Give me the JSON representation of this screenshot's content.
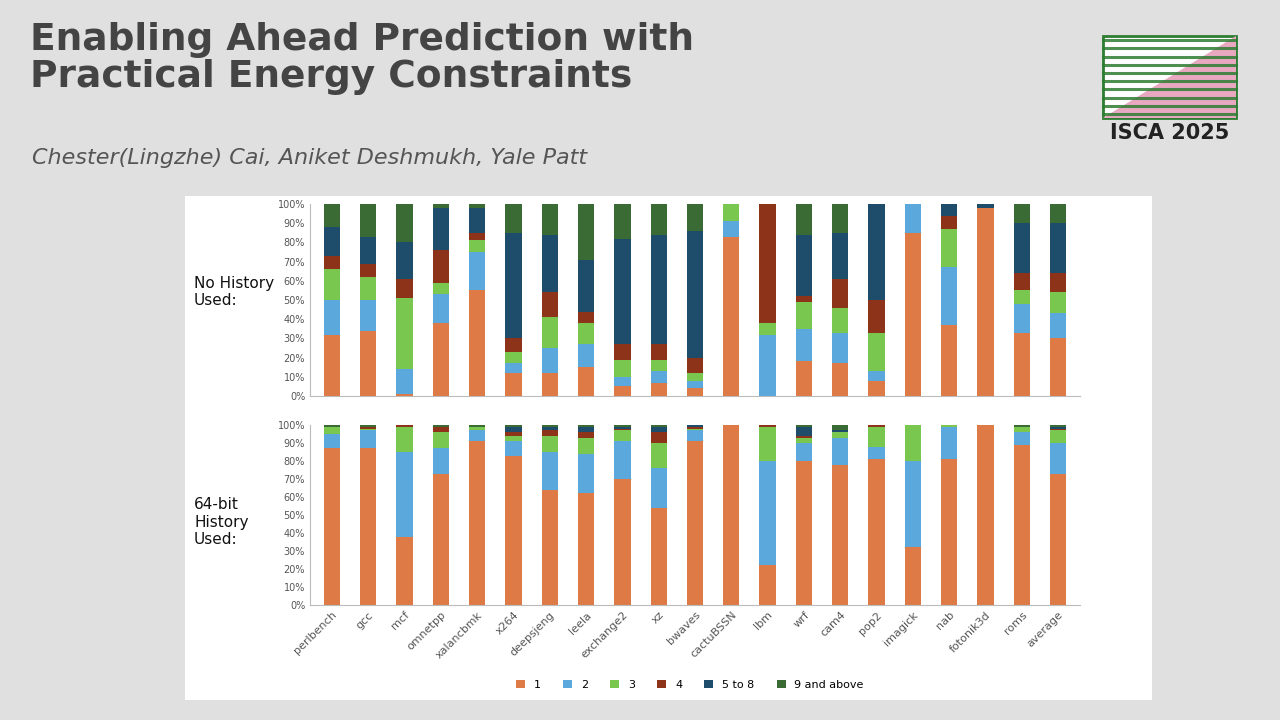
{
  "title": "Enabling Ahead Prediction with\nPractical Energy Constraints",
  "authors": "Chester(Lingzhe) Cai, Aniket Deshmukh, Yale Patt",
  "logo_text": "ISCA 2025",
  "chart_data": [
    {
      "type": "bar",
      "stacked": true,
      "subtitle": "No History\nUsed:",
      "tick_labels": "y",
      "grid": false,
      "categories": [
        "perlbench",
        "gcc",
        "mcf",
        "omnetpp",
        "xalancbmk",
        "x264",
        "deepsjeng",
        "leela",
        "exchange2",
        "xz",
        "bwaves",
        "cactuBSSN",
        "lbm",
        "wrf",
        "cam4",
        "pop2",
        "imagick",
        "nab",
        "fotonik3d",
        "roms",
        "average"
      ],
      "ylim": [
        0,
        100
      ],
      "yticks": [
        {
          "value": 0,
          "label": "0%"
        },
        {
          "value": 10,
          "label": "10%"
        },
        {
          "value": 20,
          "label": "20%"
        },
        {
          "value": 30,
          "label": "30%"
        },
        {
          "value": 40,
          "label": "40%"
        },
        {
          "value": 50,
          "label": "50%"
        },
        {
          "value": 60,
          "label": "60%"
        },
        {
          "value": 70,
          "label": "70%"
        },
        {
          "value": 80,
          "label": "80%"
        },
        {
          "value": 90,
          "label": "90%"
        },
        {
          "value": 100,
          "label": "100%"
        }
      ],
      "series": [
        {
          "name": "1",
          "color": "#dd7a45",
          "values": [
            32,
            34,
            1,
            38,
            55,
            12,
            12,
            15,
            5,
            7,
            4,
            83,
            0,
            18,
            17,
            8,
            85,
            37,
            98,
            33,
            30
          ]
        },
        {
          "name": "2",
          "color": "#5ba8dc",
          "values": [
            18,
            16,
            13,
            15,
            20,
            5,
            13,
            12,
            5,
            6,
            4,
            8,
            32,
            17,
            16,
            5,
            15,
            30,
            0,
            15,
            13
          ]
        },
        {
          "name": "3",
          "color": "#7ac74f",
          "values": [
            16,
            12,
            37,
            6,
            6,
            6,
            16,
            11,
            9,
            6,
            4,
            9,
            6,
            14,
            13,
            20,
            0,
            20,
            0,
            7,
            11
          ]
        },
        {
          "name": "4",
          "color": "#8c3319",
          "values": [
            7,
            7,
            10,
            17,
            4,
            7,
            13,
            6,
            8,
            8,
            8,
            0,
            62,
            3,
            15,
            17,
            0,
            7,
            0,
            9,
            10
          ]
        },
        {
          "name": "5 to 8",
          "color": "#1e4d6b",
          "values": [
            15,
            14,
            19,
            22,
            13,
            55,
            30,
            27,
            55,
            57,
            66,
            0,
            0,
            32,
            24,
            50,
            0,
            6,
            2,
            26,
            26
          ]
        },
        {
          "name": "9 and above",
          "color": "#3a6b35",
          "values": [
            12,
            17,
            20,
            2,
            2,
            15,
            16,
            29,
            18,
            16,
            14,
            0,
            0,
            16,
            15,
            0,
            0,
            0,
            0,
            10,
            10
          ]
        }
      ]
    },
    {
      "type": "bar",
      "stacked": true,
      "subtitle": "64-bit\nHistory\nUsed:",
      "grid": false,
      "legend": "lower center",
      "categories": [
        "perlbench",
        "gcc",
        "mcf",
        "omnetpp",
        "xalancbmk",
        "x264",
        "deepsjeng",
        "leela",
        "exchange2",
        "xz",
        "bwaves",
        "cactuBSSN",
        "lbm",
        "wrf",
        "cam4",
        "pop2",
        "imagick",
        "nab",
        "fotonik3d",
        "roms",
        "average"
      ],
      "ylim": [
        0,
        100
      ],
      "yticks": [
        {
          "value": 0,
          "label": "0%"
        },
        {
          "value": 10,
          "label": "10%"
        },
        {
          "value": 20,
          "label": "20%"
        },
        {
          "value": 30,
          "label": "30%"
        },
        {
          "value": 40,
          "label": "40%"
        },
        {
          "value": 50,
          "label": "50%"
        },
        {
          "value": 60,
          "label": "60%"
        },
        {
          "value": 70,
          "label": "70%"
        },
        {
          "value": 80,
          "label": "80%"
        },
        {
          "value": 90,
          "label": "90%"
        },
        {
          "value": 100,
          "label": "100%"
        }
      ],
      "series": [
        {
          "name": "1",
          "color": "#dd7a45",
          "values": [
            87,
            87,
            38,
            73,
            91,
            83,
            64,
            62,
            70,
            54,
            91,
            100,
            22,
            80,
            78,
            81,
            32,
            81,
            100,
            89,
            73
          ]
        },
        {
          "name": "2",
          "color": "#5ba8dc",
          "values": [
            8,
            10,
            47,
            14,
            6,
            8,
            21,
            22,
            21,
            22,
            6,
            0,
            58,
            10,
            15,
            7,
            48,
            18,
            0,
            7,
            17
          ]
        },
        {
          "name": "3",
          "color": "#7ac74f",
          "values": [
            4,
            1,
            14,
            9,
            2,
            3,
            9,
            9,
            6,
            14,
            1,
            0,
            19,
            3,
            3,
            11,
            20,
            1,
            0,
            3,
            7
          ]
        },
        {
          "name": "4",
          "color": "#8c3319",
          "values": [
            0,
            1,
            1,
            3,
            0,
            2,
            3,
            3,
            1,
            6,
            1,
            0,
            1,
            1,
            0,
            1,
            0,
            0,
            0,
            0,
            1
          ]
        },
        {
          "name": "5 to 8",
          "color": "#1e4d6b",
          "values": [
            0,
            0,
            0,
            0,
            0,
            3,
            2,
            3,
            1,
            3,
            1,
            0,
            0,
            5,
            1,
            0,
            0,
            0,
            0,
            0,
            1
          ]
        },
        {
          "name": "9 and above",
          "color": "#3a6b35",
          "values": [
            1,
            1,
            0,
            1,
            1,
            1,
            1,
            1,
            1,
            1,
            0,
            0,
            0,
            1,
            3,
            0,
            0,
            0,
            0,
            1,
            1
          ]
        }
      ]
    }
  ]
}
